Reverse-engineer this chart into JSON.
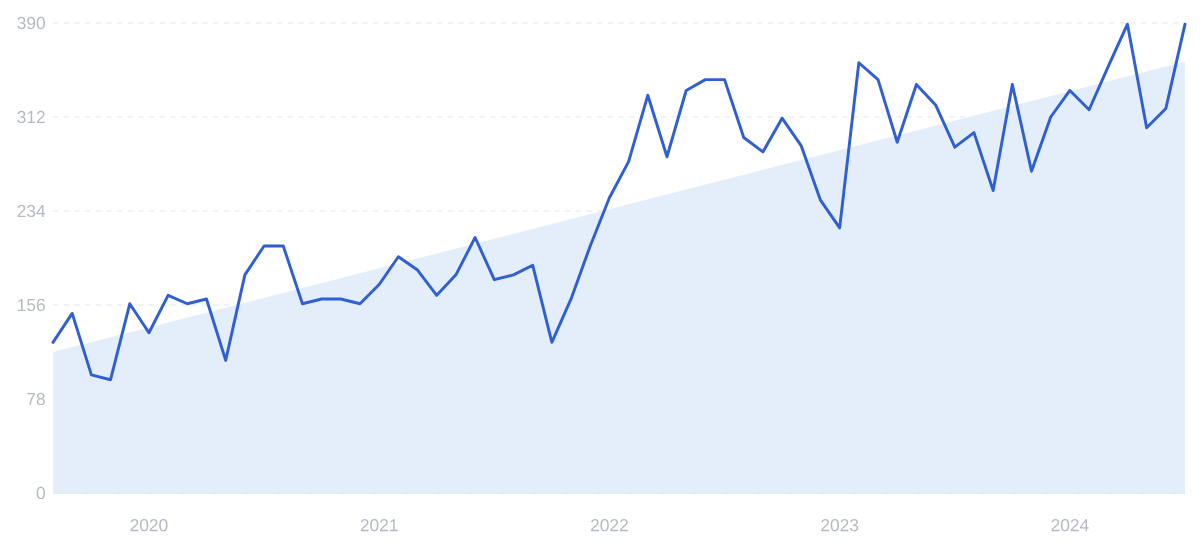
{
  "chart_data": {
    "type": "line",
    "x": [
      "2019-08",
      "2019-09",
      "2019-10",
      "2019-11",
      "2019-12",
      "2020-01",
      "2020-02",
      "2020-03",
      "2020-04",
      "2020-05",
      "2020-06",
      "2020-07",
      "2020-08",
      "2020-09",
      "2020-10",
      "2020-11",
      "2020-12",
      "2021-01",
      "2021-02",
      "2021-03",
      "2021-04",
      "2021-05",
      "2021-06",
      "2021-07",
      "2021-08",
      "2021-09",
      "2021-10",
      "2021-11",
      "2021-12",
      "2022-01",
      "2022-02",
      "2022-03",
      "2022-04",
      "2022-05",
      "2022-06",
      "2022-07",
      "2022-08",
      "2022-09",
      "2022-10",
      "2022-11",
      "2022-12",
      "2023-01",
      "2023-02",
      "2023-03",
      "2023-04",
      "2023-05",
      "2023-06",
      "2023-07",
      "2023-08",
      "2023-09",
      "2023-10",
      "2023-11",
      "2023-12",
      "2024-01",
      "2024-02",
      "2024-03",
      "2024-04",
      "2024-05",
      "2024-06",
      "2024-07"
    ],
    "series": [
      {
        "type": "area",
        "color": "#e4eefb",
        "x": [
          "2019-08",
          "2024-07"
        ],
        "values": [
          117,
          358
        ]
      },
      {
        "color": "#2f5fd3",
        "values": [
          125,
          149,
          98,
          94,
          157,
          133,
          164,
          157,
          161,
          110,
          181,
          205,
          205,
          157,
          161,
          161,
          157,
          173,
          196,
          185,
          164,
          181,
          212,
          177,
          181,
          189,
          125,
          161,
          205,
          245,
          275,
          330,
          279,
          334,
          343,
          343,
          295,
          283,
          311,
          288,
          243,
          220,
          357,
          343,
          291,
          339,
          322,
          287,
          299,
          251,
          339,
          267,
          312,
          334,
          318,
          354,
          389,
          303,
          319,
          389
        ]
      }
    ],
    "xlim": [
      "2019-08",
      "2024-07"
    ],
    "xticks": [
      "2020",
      "2021",
      "2022",
      "2023",
      "2024"
    ],
    "ylim": [
      0,
      390
    ],
    "yticks": [
      0,
      78,
      156,
      234,
      312,
      390
    ],
    "grid": "y"
  }
}
